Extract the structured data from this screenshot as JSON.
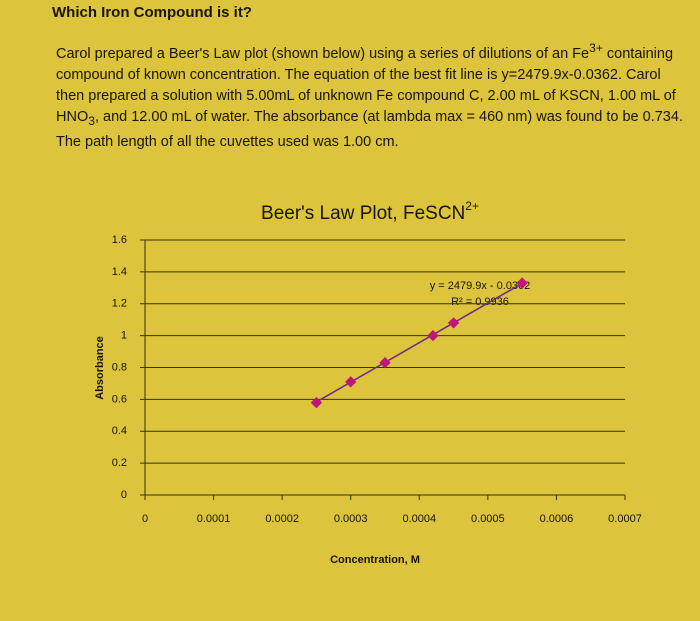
{
  "header": {
    "title": "Which Iron Compound is it?"
  },
  "problem": {
    "segments": [
      "Carol prepared a Beer's Law plot (shown below) using a series of dilutions of an Fe",
      "3+",
      " containing compound of known concentration. The equation of the best fit line is y=2479.9x-0.0362. Carol then prepared a solution with 5.00mL of unknown Fe compound C, 2.00 mL of KSCN, 1.00 mL of HNO",
      "3",
      ", and 12.00 mL of water. The absorbance (at lambda max = 460 nm) was found to be 0.734. The path length of all the cuvettes used was 1.00 cm."
    ]
  },
  "chart_data": {
    "type": "scatter",
    "title": "Beer's Law Plot, FeSCN",
    "title_superscript": "2+",
    "x_label": "Concentration, M",
    "y_label": "Absorbance",
    "equation": "y = 2479.9x - 0.0362",
    "r_squared": "R² = 0.9936",
    "points": {
      "color": "#c0157a",
      "x": [
        0.00025,
        0.0003,
        0.00035,
        0.00042,
        0.00045,
        0.00055
      ],
      "y": [
        0.58,
        0.71,
        0.83,
        1.0,
        1.08,
        1.33
      ]
    },
    "trendline": {
      "color": "#6a2a8a",
      "x": [
        0.00025,
        0.00055
      ],
      "y": [
        0.584,
        1.328
      ]
    },
    "xlim": [
      0,
      0.0007
    ],
    "xticks": [
      0,
      0.0001,
      0.0002,
      0.0003,
      0.0004,
      0.0005,
      0.0006,
      0.0007
    ],
    "ylim": [
      0,
      1.6
    ],
    "yticks": [
      0,
      0.2,
      0.4,
      0.6,
      0.8,
      1,
      1.2,
      1.4,
      1.6
    ],
    "grid": true
  }
}
